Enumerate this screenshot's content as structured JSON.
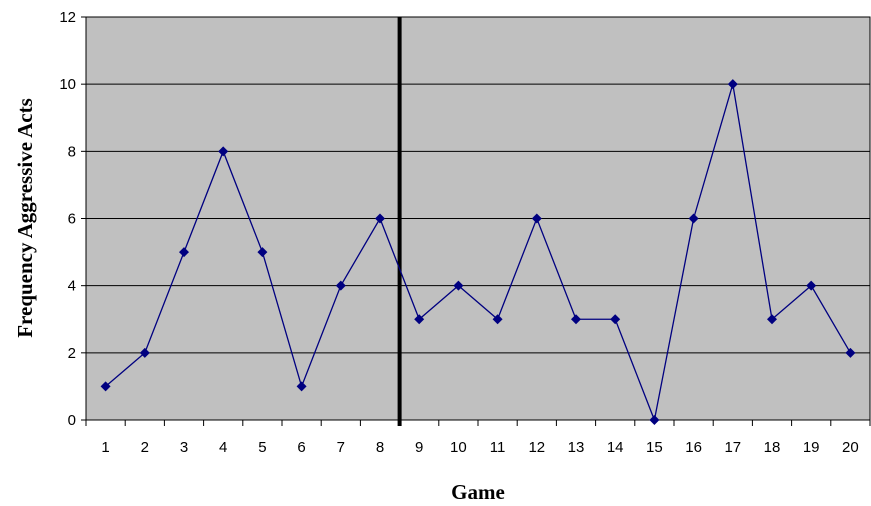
{
  "chart_data": {
    "type": "line",
    "title": "",
    "xlabel": "Game",
    "ylabel": "Frequency Aggressive Acts",
    "categories": [
      "1",
      "2",
      "3",
      "4",
      "5",
      "6",
      "7",
      "8",
      "9",
      "10",
      "11",
      "12",
      "13",
      "14",
      "15",
      "16",
      "17",
      "18",
      "19",
      "20"
    ],
    "series": [
      {
        "values": [
          1,
          2,
          5,
          8,
          5,
          1,
          4,
          6,
          3,
          4,
          3,
          6,
          3,
          3,
          0,
          6,
          10,
          3,
          4,
          2
        ]
      }
    ],
    "ylim": [
      0,
      12
    ],
    "yticks": [
      0,
      2,
      4,
      6,
      8,
      10,
      12
    ],
    "phase_line_after_category": 8,
    "grid": "horizontal",
    "legend": "none",
    "colors": {
      "plot_background": "#C0C0C0",
      "line": "#000080",
      "marker": "#000080",
      "gridline": "#000000",
      "phase_line": "#000000"
    }
  }
}
